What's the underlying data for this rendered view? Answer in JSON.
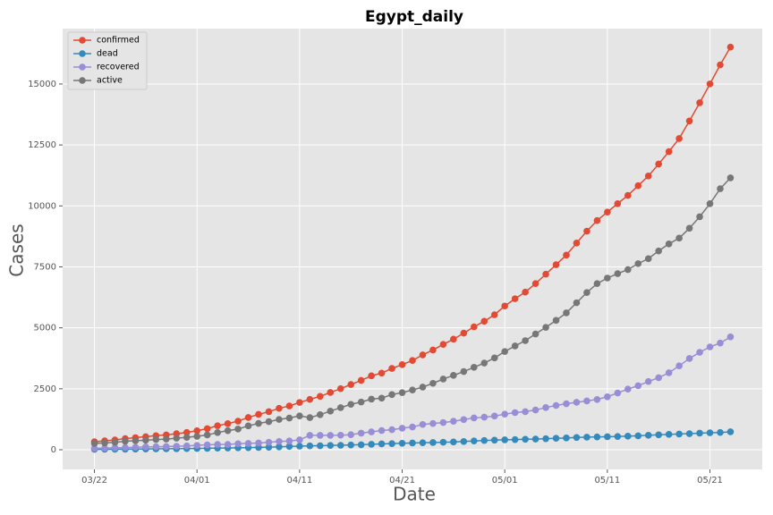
{
  "chart_data": {
    "type": "line",
    "title": "Egypt_daily",
    "xlabel": "Date",
    "ylabel": "Cases",
    "x": [
      "03/22",
      "03/23",
      "03/24",
      "03/25",
      "03/26",
      "03/27",
      "03/28",
      "03/29",
      "03/30",
      "03/31",
      "04/01",
      "04/02",
      "04/03",
      "04/04",
      "04/05",
      "04/06",
      "04/07",
      "04/08",
      "04/09",
      "04/10",
      "04/11",
      "04/12",
      "04/13",
      "04/14",
      "04/15",
      "04/16",
      "04/17",
      "04/18",
      "04/19",
      "04/20",
      "04/21",
      "04/22",
      "04/23",
      "04/24",
      "04/25",
      "04/26",
      "04/27",
      "04/28",
      "04/29",
      "04/30",
      "05/01",
      "05/02",
      "05/03",
      "05/04",
      "05/05",
      "05/06",
      "05/07",
      "05/08",
      "05/09",
      "05/10",
      "05/11",
      "05/12",
      "05/13",
      "05/14",
      "05/15",
      "05/16",
      "05/17",
      "05/18",
      "05/19",
      "05/20",
      "05/21",
      "05/22",
      "05/23"
    ],
    "series": [
      {
        "name": "confirmed",
        "color": "#E24A33",
        "values": [
          327,
          366,
          402,
          456,
          495,
          536,
          576,
          609,
          656,
          710,
          779,
          865,
          985,
          1070,
          1173,
          1322,
          1450,
          1560,
          1699,
          1794,
          1939,
          2065,
          2190,
          2350,
          2505,
          2673,
          2844,
          3032,
          3144,
          3333,
          3490,
          3659,
          3891,
          4092,
          4319,
          4534,
          4782,
          5042,
          5268,
          5537,
          5895,
          6193,
          6465,
          6813,
          7201,
          7588,
          7981,
          8476,
          8964,
          9400,
          9746,
          10093,
          10431,
          10829,
          11228,
          11719,
          12229,
          12764,
          13484,
          14229,
          15003,
          15786,
          16513
        ]
      },
      {
        "name": "dead",
        "color": "#348ABD",
        "values": [
          14,
          19,
          20,
          21,
          24,
          30,
          36,
          40,
          41,
          46,
          52,
          58,
          66,
          71,
          78,
          85,
          94,
          103,
          118,
          135,
          146,
          159,
          164,
          178,
          183,
          196,
          205,
          224,
          239,
          250,
          264,
          276,
          287,
          294,
          307,
          317,
          337,
          359,
          380,
          392,
          406,
          415,
          429,
          436,
          452,
          469,
          482,
          503,
          514,
          525,
          533,
          544,
          556,
          571,
          592,
          612,
          630,
          645,
          659,
          680,
          696,
          707,
          735
        ]
      },
      {
        "name": "recovered",
        "color": "#988ED5",
        "values": [
          56,
          68,
          80,
          89,
          101,
          116,
          121,
          132,
          142,
          157,
          179,
          201,
          216,
          216,
          247,
          259,
          276,
          305,
          339,
          359,
          406,
          589,
          589,
          589,
          596,
          616,
          682,
          732,
          788,
          821,
          884,
          933,
          1036,
          1075,
          1114,
          1168,
          1237,
          1304,
          1335,
          1381,
          1460,
          1522,
          1562,
          1630,
          1730,
          1815,
          1887,
          1945,
          2002,
          2062,
          2172,
          2326,
          2486,
          2626,
          2799,
          2953,
          3158,
          3440,
          3742,
          3994,
          4217,
          4375,
          4626
        ]
      },
      {
        "name": "active",
        "color": "#777777",
        "values": [
          257,
          279,
          302,
          346,
          370,
          390,
          419,
          437,
          473,
          507,
          548,
          606,
          703,
          783,
          848,
          978,
          1080,
          1152,
          1242,
          1300,
          1387,
          1317,
          1437,
          1583,
          1726,
          1861,
          1957,
          2076,
          2117,
          2262,
          2342,
          2450,
          2568,
          2723,
          2898,
          3049,
          3208,
          3379,
          3553,
          3764,
          4029,
          4256,
          4474,
          4747,
          5019,
          5304,
          5612,
          6028,
          6448,
          6813,
          7041,
          7223,
          7389,
          7632,
          7837,
          8154,
          8441,
          8679,
          9083,
          9555,
          10090,
          10704,
          11152
        ]
      }
    ],
    "xticks": [
      "03/22",
      "04/01",
      "04/11",
      "04/21",
      "05/01",
      "05/11",
      "05/21"
    ],
    "ylim": [
      -807,
      17272
    ],
    "yticks": [
      0,
      2500,
      5000,
      7500,
      10000,
      12500,
      15000
    ],
    "grid": true,
    "legend": "upper left"
  }
}
